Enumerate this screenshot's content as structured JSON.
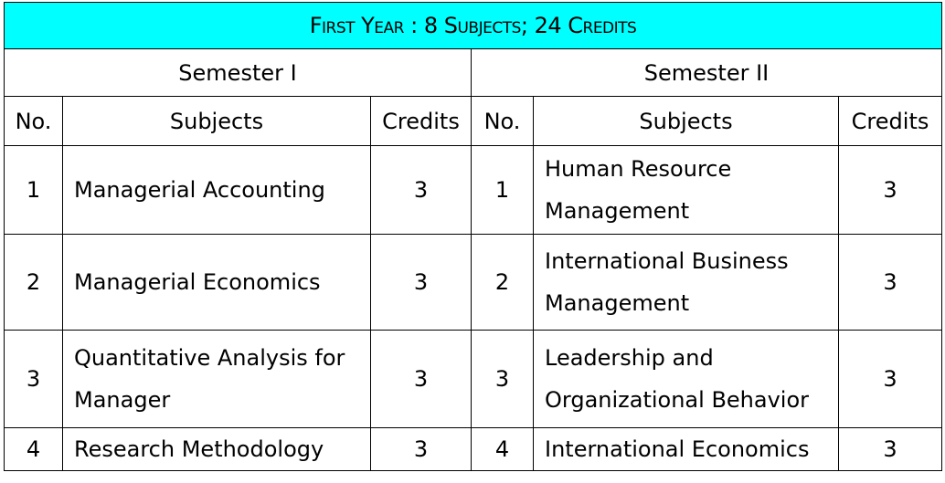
{
  "title": "First Year : 8 Subjects; 24 Credits",
  "semesters": [
    {
      "label": "Semester I",
      "headers": {
        "no": "No.",
        "subjects": "Subjects",
        "credits": "Credits"
      },
      "rows": [
        {
          "no": "1",
          "subject": "Managerial Accounting",
          "credits": "3"
        },
        {
          "no": "2",
          "subject": "Managerial Economics",
          "credits": "3"
        },
        {
          "no": "3",
          "subject": "Quantitative Analysis for Manager",
          "credits": "3"
        },
        {
          "no": "4",
          "subject": "Research Methodology",
          "credits": "3"
        }
      ]
    },
    {
      "label": "Semester II",
      "headers": {
        "no": "No.",
        "subjects": "Subjects",
        "credits": "Credits"
      },
      "rows": [
        {
          "no": "1",
          "subject": "Human Resource Management",
          "credits": "3"
        },
        {
          "no": "2",
          "subject": "International Business Management",
          "credits": "3"
        },
        {
          "no": "3",
          "subject": "Leadership and Organizational Behavior",
          "credits": "3"
        },
        {
          "no": "4",
          "subject": "International Economics",
          "credits": "3"
        }
      ]
    }
  ],
  "colors": {
    "title_background": "#00ffff",
    "border": "#000000"
  }
}
